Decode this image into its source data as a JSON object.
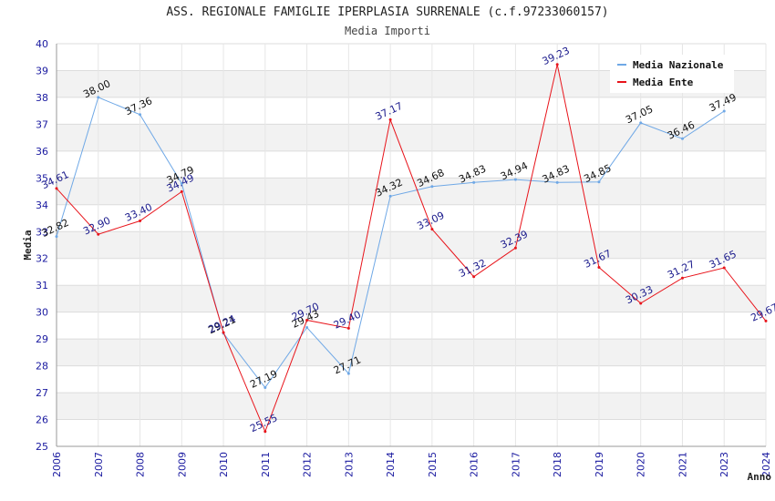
{
  "header": {
    "title": "ASS. REGIONALE FAMIGLIE IPERPLASIA SURRENALE (c.f.97233060157)",
    "subtitle": "Media Importi"
  },
  "chart_data": {
    "type": "line",
    "title": "ASS. REGIONALE FAMIGLIE IPERPLASIA SURRENALE (c.f.97233060157)",
    "subtitle": "Media Importi",
    "xlabel": "Anno",
    "ylabel": "Media",
    "ylim": [
      25,
      40
    ],
    "yticks": [
      25,
      26,
      27,
      28,
      29,
      30,
      31,
      32,
      33,
      34,
      35,
      36,
      37,
      38,
      39,
      40
    ],
    "categories": [
      "2006",
      "2007",
      "2008",
      "2009",
      "2010",
      "2011",
      "2012",
      "2013",
      "2014",
      "2015",
      "2016",
      "2017",
      "2018",
      "2019",
      "2020",
      "2021",
      "2023",
      "2024"
    ],
    "grid": true,
    "legend_position": "top-right",
    "series": [
      {
        "name": "Media Nazionale",
        "color": "#6fa8e6",
        "values": [
          32.82,
          38.0,
          37.36,
          34.79,
          29.21,
          27.19,
          29.43,
          27.71,
          34.32,
          34.68,
          34.83,
          34.94,
          34.83,
          34.85,
          37.05,
          36.46,
          37.49,
          null
        ],
        "labels": [
          "32.82",
          "38.00",
          "37.36",
          "34.79",
          "29.21",
          "27.19",
          "29.43",
          "27.71",
          "34.32",
          "34.68",
          "34.83",
          "34.94",
          "34.83",
          "34.85",
          "37.05",
          "36.46",
          "37.49",
          ""
        ]
      },
      {
        "name": "Media Ente",
        "color": "#e8131a",
        "values": [
          34.61,
          32.9,
          33.4,
          34.49,
          29.24,
          25.55,
          29.7,
          29.4,
          37.17,
          33.09,
          31.32,
          32.39,
          39.23,
          31.67,
          30.33,
          31.27,
          31.65,
          29.67
        ],
        "labels": [
          "34.61",
          "32.90",
          "33.40",
          "34.49",
          "29.24",
          "25.55",
          "29.70",
          "29.40",
          "37.17",
          "33.09",
          "31.32",
          "32.39",
          "39.23",
          "31.67",
          "30.33",
          "31.27",
          "31.65",
          "29.67"
        ]
      }
    ]
  }
}
